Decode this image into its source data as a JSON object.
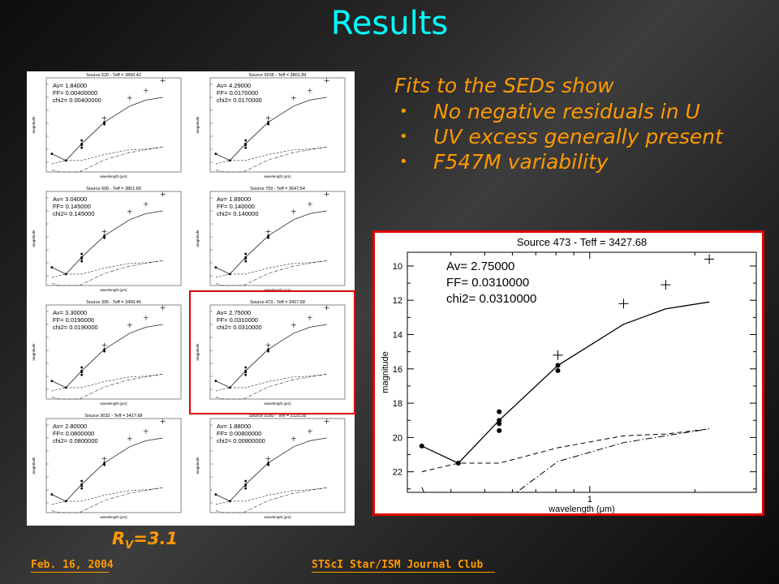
{
  "slide": {
    "title": "Results",
    "bullets_heading": "Fits to the SEDs show",
    "bullets": [
      "No negative residuals in U",
      "UV excess generally present",
      "F547M variability"
    ],
    "bullet_marker": "•",
    "rv_label_prefix": "R",
    "rv_label_sub": "V",
    "rv_label_suffix": "=3.1",
    "footer_date": "Feb. 16, 2004",
    "footer_title": "STScI Star/ISM Journal Club",
    "colors": {
      "title": "#00ffff",
      "text": "#ff9900",
      "highlight": "#e00000"
    }
  },
  "chart_data": [
    {
      "type": "line",
      "title": "Source 473  -  Teff = 3427.68",
      "xlabel": "wavelength (μm)",
      "ylabel": "magnitude",
      "x_scale": "log",
      "xlim": [
        0.3,
        3.0
      ],
      "ylim": [
        23.2,
        9.2
      ],
      "y_ticks": [
        10,
        12,
        14,
        16,
        18,
        20,
        22
      ],
      "x_tick_labels": [
        {
          "x": 1,
          "label": "1"
        }
      ],
      "annotations": [
        "Av=  2.75000",
        "FF=  0.0310000",
        "chi2=  0.0310000"
      ],
      "series": [
        {
          "style": "solid",
          "x": [
            0.33,
            0.42,
            0.55,
            0.81,
            1.25,
            1.65,
            2.2
          ],
          "y": [
            20.5,
            21.5,
            19.0,
            15.8,
            13.4,
            12.5,
            12.1
          ]
        },
        {
          "style": "dashed",
          "x": [
            0.33,
            0.42,
            0.55,
            0.81,
            1.25,
            1.65,
            2.2
          ],
          "y": [
            22.0,
            21.5,
            21.5,
            20.6,
            19.9,
            19.8,
            19.5
          ]
        },
        {
          "style": "dash-dot",
          "x": [
            0.33,
            0.375,
            0.53,
            0.81,
            1.25,
            1.65,
            2.2
          ],
          "y": [
            22.9,
            25.5,
            24.2,
            21.4,
            20.3,
            19.9,
            19.5
          ]
        }
      ],
      "observed_points": {
        "x": [
          0.33,
          0.42,
          0.55,
          0.55,
          0.55,
          0.55,
          0.81,
          0.81
        ],
        "y": [
          20.5,
          21.5,
          18.5,
          19.0,
          19.2,
          19.6,
          15.8,
          16.1
        ]
      },
      "infrared_crosses": {
        "x": [
          0.81,
          1.25,
          1.65,
          2.2
        ],
        "y": [
          15.2,
          12.2,
          11.1,
          9.6
        ]
      }
    },
    {
      "type": "grid",
      "panels": [
        {
          "title": "Source 620  -  Teff = 3899.42",
          "av": "1.84000",
          "ff": "0.00400000",
          "chi2": "0.00400000"
        },
        {
          "title": "Source 9209  -  Teff = 3801.89",
          "av": "4.29000",
          "ff": "0.0170000",
          "chi2": "0.0170000"
        },
        {
          "title": "Source 606  -  Teff = 3801.89",
          "av": "3.04000",
          "ff": "0.145000",
          "chi2": "0.145000"
        },
        {
          "title": "Source 759  -  Teff = 3647.54",
          "av": "1.89000",
          "ff": "0.140000",
          "chi2": "0.140000"
        },
        {
          "title": "Source 395  -  Teff = 3499.45",
          "av": "3.30000",
          "ff": "0.0190000",
          "chi2": "0.0190000"
        },
        {
          "title": "Source 473  -  Teff = 3427.68",
          "av": "2.75000",
          "ff": "0.0310000",
          "chi2": "0.0310000"
        },
        {
          "title": "Source 9032  -  Teff = 3427.68",
          "av": "2.80000",
          "ff": "0.0800000",
          "chi2": "0.0800000"
        },
        {
          "title": "Source 9280  -  Teff = 3325.58",
          "av": "1.88000",
          "ff": "0.00800000",
          "chi2": "0.00800000"
        }
      ],
      "xlabel": "wavelength (μm)",
      "ylabel": "magnitude",
      "av_prefix": "Av= ",
      "ff_prefix": "FF= ",
      "chi2_prefix": "chi2= "
    }
  ]
}
